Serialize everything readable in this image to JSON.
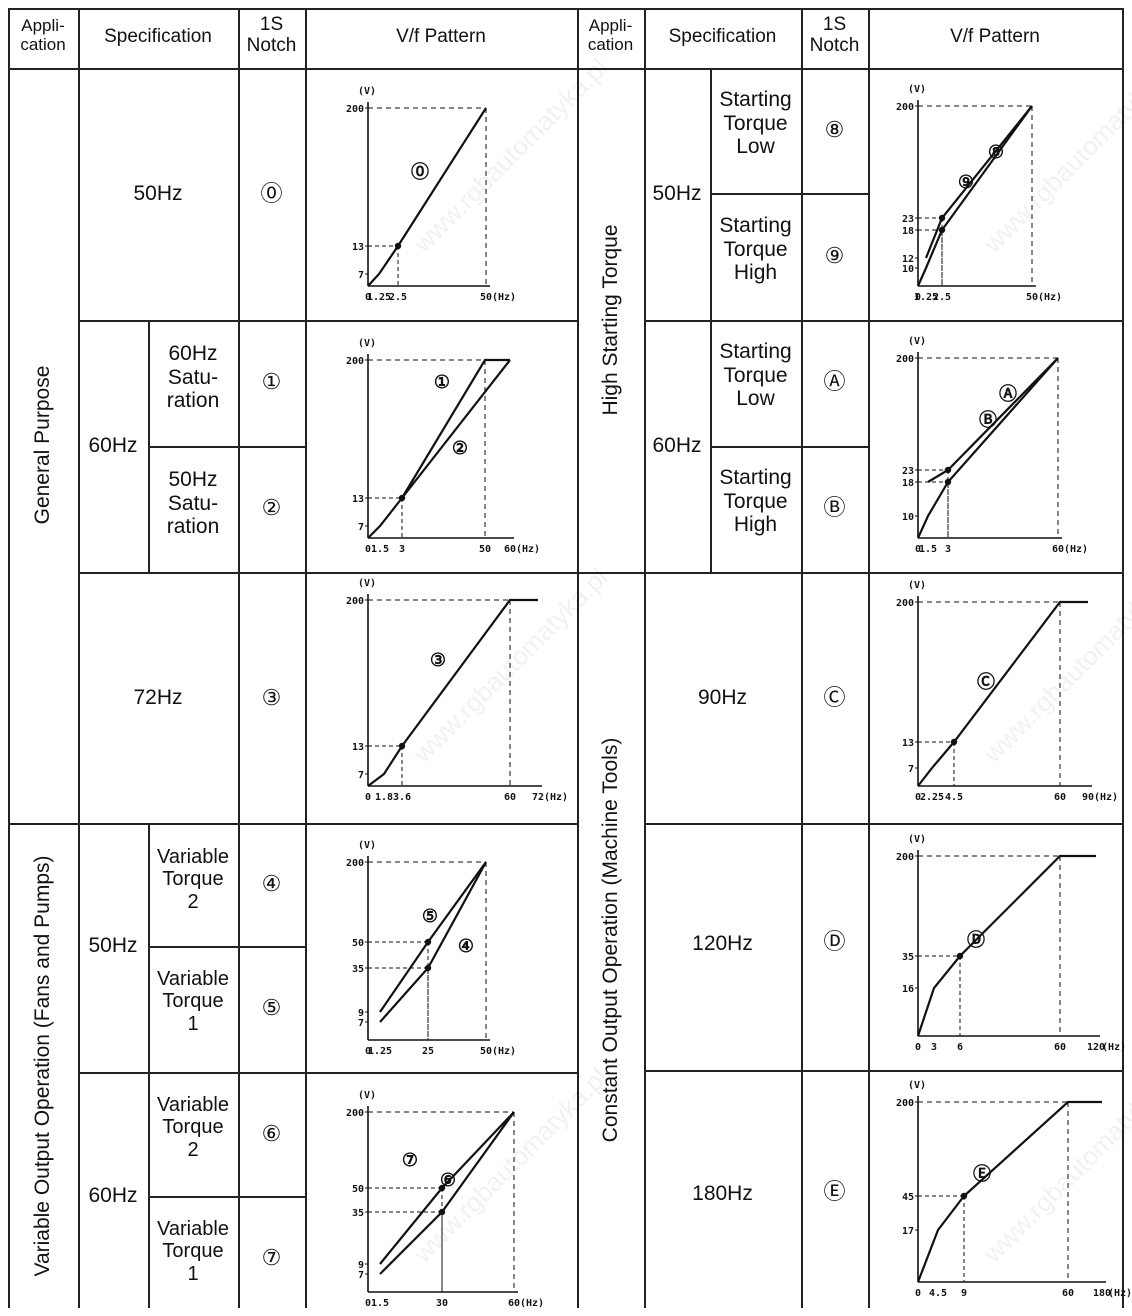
{
  "header": {
    "left": {
      "application": "Appli-\ncation",
      "specification": "Specification",
      "notch": "1S\nNotch",
      "pattern": "V/f Pattern"
    },
    "right": {
      "application": "Appli-\ncation",
      "specification": "Specification",
      "notch": "1S\nNotch",
      "pattern": "V/f Pattern"
    }
  },
  "applications": {
    "general": "General Purpose",
    "variable": "Variable Output Operation (Fans and Pumps)",
    "high_torque": "High Starting Torque",
    "constant": "Constant Output Operation (Machine Tools)"
  },
  "specs": {
    "s50": "50Hz",
    "s60": "60Hz",
    "s60sat": "60Hz\nSatu-\nration",
    "s50sat": "50Hz\nSatu-\nration",
    "s72": "72Hz",
    "s50v": "50Hz",
    "vt2": "Variable\nTorque\n2",
    "vt1": "Variable\nTorque\n1",
    "s60v": "60Hz",
    "vt2b": "Variable\nTorque\n2",
    "vt1b": "Variable\nTorque\n1",
    "h50": "50Hz",
    "stl": "Starting\nTorque\nLow",
    "sth": "Starting\nTorque\nHigh",
    "h60": "60Hz",
    "stl2": "Starting\nTorque\nLow",
    "sth2": "Starting\nTorque\nHigh",
    "c90": "90Hz",
    "c120": "120Hz",
    "c180": "180Hz"
  },
  "notches": {
    "n0": "⓪",
    "n1": "①",
    "n2": "②",
    "n3": "③",
    "n4": "④",
    "n5": "⑤",
    "n6": "⑥",
    "n7": "⑦",
    "n8": "⑧",
    "n9": "⑨",
    "nA": "Ⓐ",
    "nB": "Ⓑ",
    "nC": "Ⓒ",
    "nD": "Ⓓ",
    "nE": "Ⓔ"
  },
  "watermark": "www.rgbautomatyka.pl",
  "charts": [
    {
      "id": "p0",
      "yunit": "(V)",
      "xunit": "(Hz)",
      "yticks": [
        "200",
        "13",
        "7"
      ],
      "xticks": [
        "0",
        "1.25",
        "2.5",
        "50"
      ],
      "series": [
        {
          "label": "⓪",
          "points": [
            [
              0,
              0
            ],
            [
              1.25,
              7
            ],
            [
              2.5,
              13
            ],
            [
              50,
              200
            ]
          ]
        }
      ],
      "markers": [
        [
          2.5,
          13
        ]
      ]
    },
    {
      "id": "p12",
      "yunit": "(V)",
      "xunit": "(Hz)",
      "yticks": [
        "200",
        "13",
        "7"
      ],
      "xticks": [
        "0",
        "1.5",
        "3",
        "50",
        "60"
      ],
      "series": [
        {
          "label": "①",
          "points": [
            [
              0,
              0
            ],
            [
              1.5,
              7
            ],
            [
              3,
              13
            ],
            [
              60,
              200
            ]
          ]
        },
        {
          "label": "②",
          "points": [
            [
              3,
              13
            ],
            [
              50,
              200
            ],
            [
              60,
              200
            ]
          ]
        }
      ],
      "markers": [
        [
          3,
          13
        ]
      ]
    },
    {
      "id": "p3",
      "yunit": "(V)",
      "xunit": "(Hz)",
      "yticks": [
        "200",
        "13",
        "7"
      ],
      "xticks": [
        "0",
        "1.8",
        "3.6",
        "60",
        "72"
      ],
      "series": [
        {
          "label": "③",
          "points": [
            [
              0,
              0
            ],
            [
              1.8,
              7
            ],
            [
              3.6,
              13
            ],
            [
              60,
              200
            ],
            [
              72,
              200
            ]
          ]
        }
      ],
      "markers": [
        [
          3.6,
          13
        ]
      ]
    },
    {
      "id": "p45",
      "yunit": "(V)",
      "xunit": "(Hz)",
      "yticks": [
        "200",
        "50",
        "35",
        "9",
        "7"
      ],
      "xticks": [
        "0",
        "1.25",
        "25",
        "50"
      ],
      "series": [
        {
          "label": "④",
          "points": [
            [
              1.25,
              7
            ],
            [
              25,
              35
            ],
            [
              50,
              200
            ]
          ]
        },
        {
          "label": "⑤",
          "points": [
            [
              1.25,
              9
            ],
            [
              25,
              50
            ],
            [
              50,
              200
            ]
          ]
        }
      ],
      "markers": [
        [
          25,
          50
        ],
        [
          25,
          35
        ]
      ]
    },
    {
      "id": "p67",
      "yunit": "(V)",
      "xunit": "(Hz)",
      "yticks": [
        "200",
        "50",
        "35",
        "9",
        "7"
      ],
      "xticks": [
        "0",
        "1.5",
        "30",
        "60"
      ],
      "series": [
        {
          "label": "⑥",
          "points": [
            [
              1.5,
              7
            ],
            [
              30,
              35
            ],
            [
              60,
              200
            ]
          ]
        },
        {
          "label": "⑦",
          "points": [
            [
              1.5,
              9
            ],
            [
              30,
              50
            ],
            [
              60,
              200
            ]
          ]
        }
      ],
      "markers": [
        [
          30,
          50
        ],
        [
          30,
          35
        ]
      ]
    },
    {
      "id": "p89",
      "yunit": "(V)",
      "xunit": "(Hz)",
      "yticks": [
        "200",
        "23",
        "18",
        "12",
        "10"
      ],
      "xticks": [
        "0",
        "1.25",
        "2.5",
        "50"
      ],
      "series": [
        {
          "label": "⑧",
          "points": [
            [
              0,
              0
            ],
            [
              1.25,
              10
            ],
            [
              2.5,
              18
            ],
            [
              50,
              200
            ]
          ]
        },
        {
          "label": "⑨",
          "points": [
            [
              1.25,
              12
            ],
            [
              2.5,
              23
            ],
            [
              50,
              200
            ]
          ]
        }
      ],
      "markers": [
        [
          2.5,
          23
        ],
        [
          2.5,
          18
        ]
      ]
    },
    {
      "id": "pAB",
      "yunit": "(V)",
      "xunit": "(Hz)",
      "yticks": [
        "200",
        "23",
        "18",
        "10"
      ],
      "xticks": [
        "0",
        "1.5",
        "3",
        "60"
      ],
      "series": [
        {
          "label": "Ⓐ",
          "points": [
            [
              0,
              0
            ],
            [
              1.5,
              10
            ],
            [
              3,
              18
            ],
            [
              60,
              200
            ]
          ]
        },
        {
          "label": "Ⓑ",
          "points": [
            [
              1.5,
              18
            ],
            [
              3,
              23
            ],
            [
              60,
              200
            ]
          ]
        }
      ],
      "markers": [
        [
          3,
          23
        ],
        [
          3,
          18
        ]
      ]
    },
    {
      "id": "pC",
      "yunit": "(V)",
      "xunit": "(Hz)",
      "yticks": [
        "200",
        "13",
        "7"
      ],
      "xticks": [
        "0",
        "2.25",
        "4.5",
        "60",
        "90"
      ],
      "series": [
        {
          "label": "Ⓒ",
          "points": [
            [
              0,
              0
            ],
            [
              2.25,
              7
            ],
            [
              4.5,
              13
            ],
            [
              60,
              200
            ],
            [
              90,
              200
            ]
          ]
        }
      ],
      "markers": [
        [
          4.5,
          13
        ]
      ]
    },
    {
      "id": "pD",
      "yunit": "(V)",
      "xunit": "(Hz)",
      "yticks": [
        "200",
        "35",
        "16"
      ],
      "xticks": [
        "0",
        "3",
        "6",
        "60",
        "120"
      ],
      "series": [
        {
          "label": "Ⓓ",
          "points": [
            [
              0,
              0
            ],
            [
              3,
              16
            ],
            [
              6,
              35
            ],
            [
              60,
              200
            ],
            [
              120,
              200
            ]
          ]
        }
      ],
      "markers": [
        [
          6,
          35
        ]
      ]
    },
    {
      "id": "pE",
      "yunit": "(V)",
      "xunit": "(Hz)",
      "yticks": [
        "200",
        "45",
        "17"
      ],
      "xticks": [
        "0",
        "4.5",
        "9",
        "60",
        "180"
      ],
      "series": [
        {
          "label": "Ⓔ",
          "points": [
            [
              0,
              0
            ],
            [
              4.5,
              17
            ],
            [
              9,
              45
            ],
            [
              60,
              200
            ],
            [
              180,
              200
            ]
          ]
        }
      ],
      "markers": [
        [
          9,
          45
        ]
      ]
    }
  ]
}
